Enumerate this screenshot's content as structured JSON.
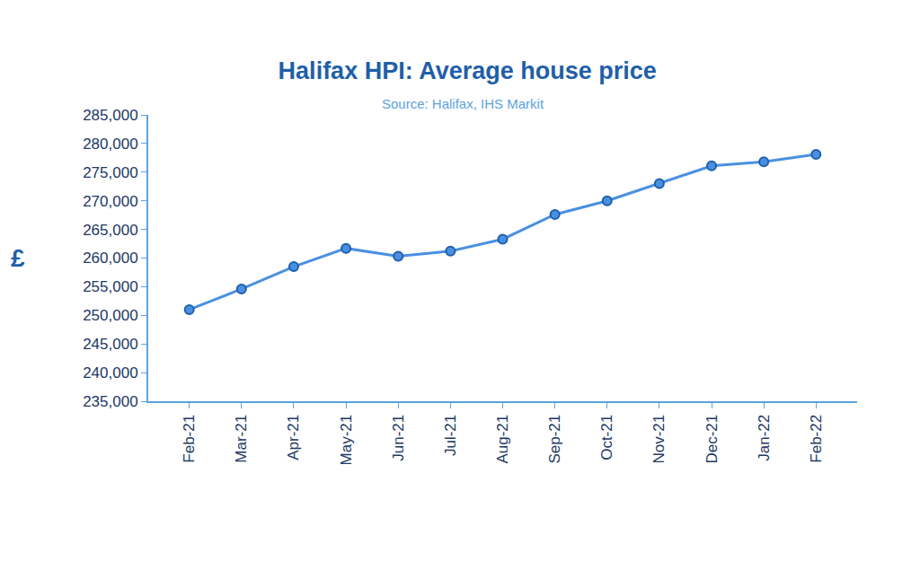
{
  "chart_data": {
    "type": "line",
    "title": "Halifax HPI: Average house price",
    "subtitle": "Source: Halifax, IHS Markit",
    "y_label": "£",
    "categories": [
      "Feb-21",
      "Mar-21",
      "Apr-21",
      "May-21",
      "Jun-21",
      "Jul-21",
      "Aug-21",
      "Sep-21",
      "Oct-21",
      "Nov-21",
      "Dec-21",
      "Jan-22",
      "Feb-22"
    ],
    "values": [
      251000,
      254600,
      258500,
      261700,
      260300,
      261200,
      263300,
      267600,
      270000,
      273000,
      276100,
      276800,
      278100
    ],
    "color": "#4a90e2",
    "marker": "circle",
    "ylim": [
      235000,
      285000
    ],
    "yticks": [
      {
        "value": 235000,
        "label": "235,000"
      },
      {
        "value": 240000,
        "label": "240,000"
      },
      {
        "value": 245000,
        "label": "245,000"
      },
      {
        "value": 250000,
        "label": "250,000"
      },
      {
        "value": 255000,
        "label": "255,000"
      },
      {
        "value": 260000,
        "label": "260,000"
      },
      {
        "value": 265000,
        "label": "265,000"
      },
      {
        "value": 270000,
        "label": "270,000"
      },
      {
        "value": 275000,
        "label": "275,000"
      },
      {
        "value": 280000,
        "label": "280,000"
      },
      {
        "value": 285000,
        "label": "285,000"
      }
    ],
    "grid": false
  }
}
